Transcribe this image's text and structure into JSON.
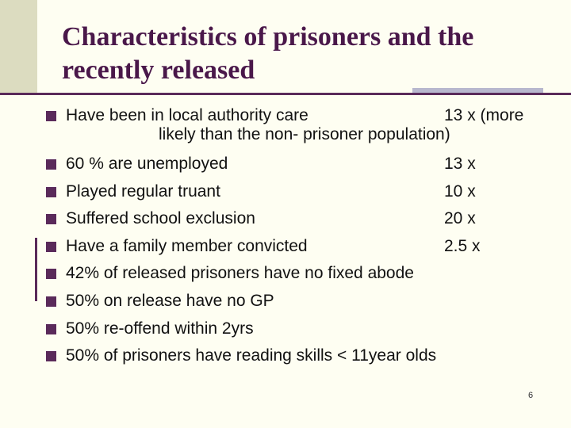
{
  "slide": {
    "title_line1": "Characteristics of prisoners and the",
    "title_line2": "recently released",
    "bullets": [
      {
        "label": "Have been in local authority care",
        "value": "13 x (more",
        "continuation": "likely than the non- prisoner population)"
      },
      {
        "label": "60 % are unemployed",
        "value": "13 x"
      },
      {
        "label": "Played regular truant",
        "value": "10 x"
      },
      {
        "label": "Suffered school exclusion",
        "value": "20 x"
      },
      {
        "label": "Have a family member convicted",
        "value": "2.5 x"
      },
      {
        "label": "42% of released prisoners have no fixed abode"
      },
      {
        "label": "50% on release have no GP"
      },
      {
        "label": "50% re-offend within 2yrs"
      },
      {
        "label": "50% of prisoners have reading skills < 11year olds"
      }
    ],
    "page_number": "6"
  },
  "colors": {
    "background": "#fefef2",
    "accent": "#5a2a5a",
    "title": "#4a184a",
    "band": "#dcdcc0",
    "gray_rule": "#b8b8ce"
  }
}
